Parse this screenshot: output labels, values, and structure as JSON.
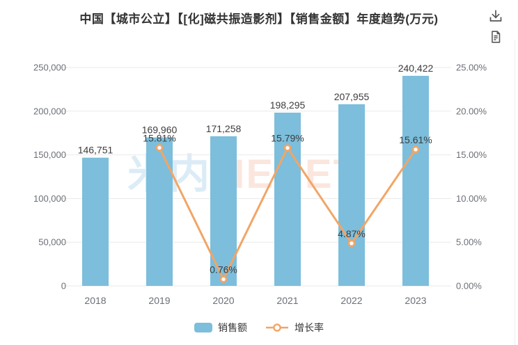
{
  "chart_data": {
    "type": "bar",
    "title": "中国【城市公立】【[化]磁共振造影剂】【销售金额】年度趋势(万元)",
    "categories": [
      "2018",
      "2019",
      "2020",
      "2021",
      "2022",
      "2023"
    ],
    "series": [
      {
        "name": "销售额",
        "type": "bar",
        "axis": "left",
        "color": "#7CBEDC",
        "values": [
          146751,
          169960,
          171258,
          198295,
          207955,
          240422
        ],
        "labels": [
          "146,751",
          "169,960",
          "171,258",
          "198,295",
          "207,955",
          "240,422"
        ]
      },
      {
        "name": "增长率",
        "type": "line",
        "axis": "right",
        "color": "#F2A565",
        "values": [
          null,
          15.81,
          0.76,
          15.79,
          4.87,
          15.61
        ],
        "labels": [
          null,
          "15.81%",
          "0.76%",
          "15.79%",
          "4.87%",
          "15.61%"
        ]
      }
    ],
    "left_axis": {
      "min": 0,
      "max": 250000,
      "tick_step": 50000,
      "tick_labels": [
        "0",
        "50,000",
        "100,000",
        "150,000",
        "200,000",
        "250,000"
      ]
    },
    "right_axis": {
      "min": 0,
      "max": 25,
      "tick_step": 5,
      "tick_labels": [
        "0.00%",
        "5.00%",
        "10.00%",
        "15.00%",
        "20.00%",
        "25.00%"
      ]
    },
    "legend_position": "bottom",
    "grid": true,
    "grid_color": "#E9E9E9",
    "axis_text_color": "#6B6F77",
    "value_label_color": "#3C3C3C"
  },
  "toolbox": {
    "icons": [
      {
        "name": "download-icon"
      },
      {
        "name": "report-icon"
      }
    ],
    "icon_color": "#555555"
  },
  "watermark": {
    "part1": "米内",
    "part2": "MENET"
  }
}
